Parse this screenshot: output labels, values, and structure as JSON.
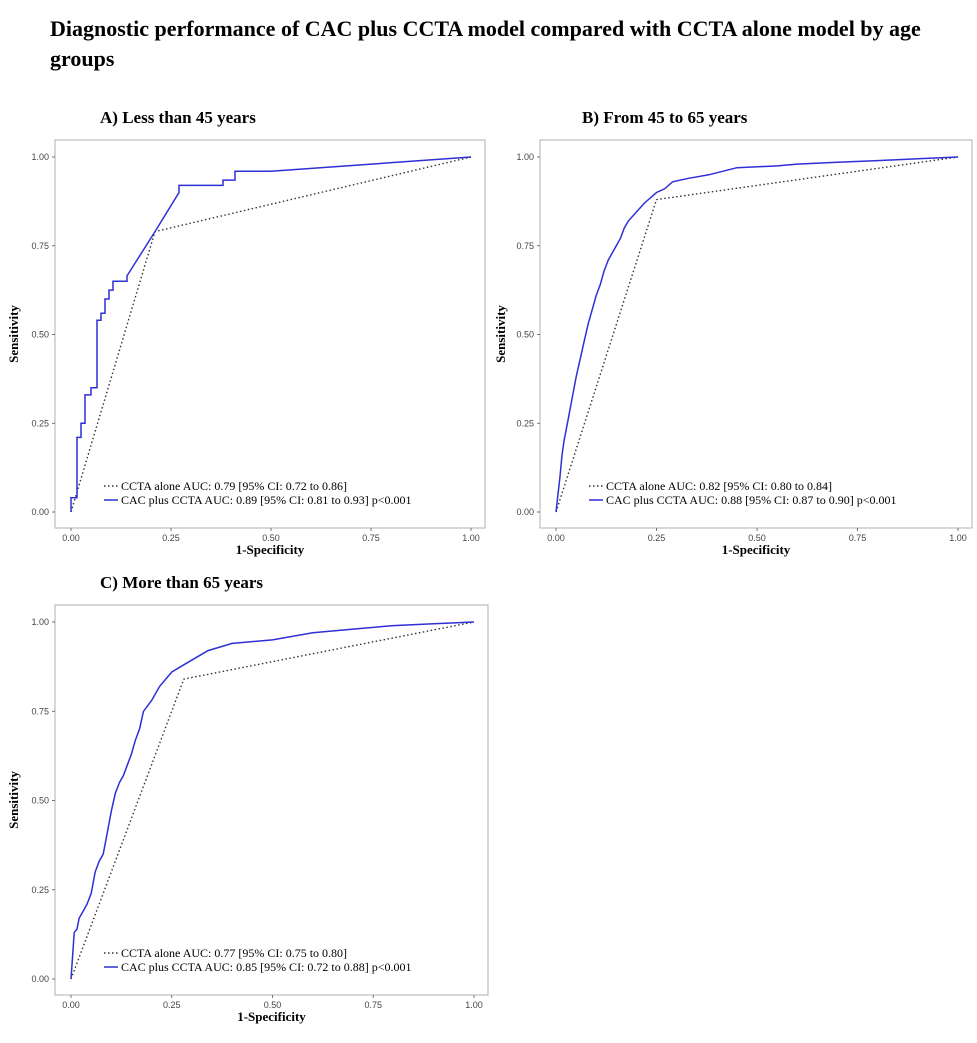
{
  "page": {
    "title": "Diagnostic performance of CAC plus CCTA model compared with CCTA alone model by age groups"
  },
  "colors": {
    "ccta_alone": "#333333",
    "cac_plus_ccta": "#2f2fd6",
    "panel_border": "#b0b0b0"
  },
  "chart_data": [
    {
      "type": "line",
      "title": "A)  Less than 45 years",
      "xlabel": "1-Specificity",
      "ylabel": "Sensitivity",
      "xlim": [
        0,
        1
      ],
      "ylim": [
        0,
        1
      ],
      "grid": false,
      "legend_position": "bottom-left",
      "x_ticks": [
        "0.00",
        "0.25",
        "0.50",
        "0.75",
        "1.00"
      ],
      "y_ticks": [
        "0.00",
        "0.25",
        "0.50",
        "0.75",
        "1.00"
      ],
      "series": [
        {
          "name": "CCTA alone AUC: 0.79 [95% CI: 0.72 to 0.86]",
          "style": "dotted",
          "color": "#333333",
          "points": [
            [
              0,
              0
            ],
            [
              0.21,
              0.79
            ],
            [
              1,
              1
            ]
          ]
        },
        {
          "name": "CAC plus CCTA  AUC: 0.89 [95% CI: 0.81 to 0.93] p<0.001",
          "style": "solid",
          "color": "#2f2fd6",
          "points": [
            [
              0,
              0
            ],
            [
              0,
              0.04
            ],
            [
              0.015,
              0.04
            ],
            [
              0.015,
              0.21
            ],
            [
              0.025,
              0.21
            ],
            [
              0.025,
              0.25
            ],
            [
              0.035,
              0.25
            ],
            [
              0.035,
              0.33
            ],
            [
              0.05,
              0.33
            ],
            [
              0.05,
              0.35
            ],
            [
              0.065,
              0.35
            ],
            [
              0.065,
              0.54
            ],
            [
              0.075,
              0.54
            ],
            [
              0.075,
              0.56
            ],
            [
              0.085,
              0.56
            ],
            [
              0.085,
              0.6
            ],
            [
              0.095,
              0.6
            ],
            [
              0.095,
              0.625
            ],
            [
              0.105,
              0.625
            ],
            [
              0.105,
              0.65
            ],
            [
              0.14,
              0.65
            ],
            [
              0.14,
              0.665
            ],
            [
              0.21,
              0.79
            ],
            [
              0.27,
              0.9
            ],
            [
              0.27,
              0.92
            ],
            [
              0.38,
              0.92
            ],
            [
              0.38,
              0.935
            ],
            [
              0.41,
              0.935
            ],
            [
              0.41,
              0.96
            ],
            [
              0.5,
              0.96
            ],
            [
              1,
              1
            ]
          ]
        }
      ]
    },
    {
      "type": "line",
      "title": "B) From 45 to 65 years",
      "xlabel": "1-Specificity",
      "ylabel": "Sensitivity",
      "xlim": [
        0,
        1
      ],
      "ylim": [
        0,
        1
      ],
      "grid": false,
      "legend_position": "bottom-left",
      "x_ticks": [
        "0.00",
        "0.25",
        "0.50",
        "0.75",
        "1.00"
      ],
      "y_ticks": [
        "0.00",
        "0.25",
        "0.50",
        "0.75",
        "1.00"
      ],
      "series": [
        {
          "name": "CCTA alone AUC: 0.82 [95% CI: 0.80 to 0.84]",
          "style": "dotted",
          "color": "#333333",
          "points": [
            [
              0,
              0
            ],
            [
              0.25,
              0.88
            ],
            [
              1,
              1
            ]
          ]
        },
        {
          "name": "CAC plus CCTA  AUC: 0.88 [95% CI: 0.87 to 0.90] p<0.001",
          "style": "solid",
          "color": "#2f2fd6",
          "points": [
            [
              0,
              0
            ],
            [
              0.005,
              0.05
            ],
            [
              0.01,
              0.1
            ],
            [
              0.015,
              0.16
            ],
            [
              0.02,
              0.2
            ],
            [
              0.03,
              0.26
            ],
            [
              0.04,
              0.32
            ],
            [
              0.05,
              0.38
            ],
            [
              0.06,
              0.43
            ],
            [
              0.07,
              0.48
            ],
            [
              0.08,
              0.53
            ],
            [
              0.09,
              0.57
            ],
            [
              0.1,
              0.61
            ],
            [
              0.11,
              0.64
            ],
            [
              0.12,
              0.68
            ],
            [
              0.13,
              0.71
            ],
            [
              0.14,
              0.73
            ],
            [
              0.15,
              0.75
            ],
            [
              0.16,
              0.77
            ],
            [
              0.17,
              0.8
            ],
            [
              0.18,
              0.82
            ],
            [
              0.2,
              0.845
            ],
            [
              0.22,
              0.87
            ],
            [
              0.25,
              0.9
            ],
            [
              0.27,
              0.91
            ],
            [
              0.29,
              0.93
            ],
            [
              0.33,
              0.94
            ],
            [
              0.38,
              0.95
            ],
            [
              0.45,
              0.97
            ],
            [
              0.55,
              0.975
            ],
            [
              0.6,
              0.98
            ],
            [
              0.7,
              0.985
            ],
            [
              0.8,
              0.99
            ],
            [
              0.9,
              0.995
            ],
            [
              1,
              1
            ]
          ]
        }
      ]
    },
    {
      "type": "line",
      "title": "C) More than 65 years",
      "xlabel": "1-Specificity",
      "ylabel": "Sensitivity",
      "xlim": [
        0,
        1
      ],
      "ylim": [
        0,
        1
      ],
      "grid": false,
      "legend_position": "bottom-left",
      "x_ticks": [
        "0.00",
        "0.25",
        "0.50",
        "0.75",
        "1.00"
      ],
      "y_ticks": [
        "0.00",
        "0.25",
        "0.50",
        "0.75",
        "1.00"
      ],
      "series": [
        {
          "name": "CCTA alone AUC: 0.77 [95% CI: 0.75 to 0.80]",
          "style": "dotted",
          "color": "#333333",
          "points": [
            [
              0,
              0
            ],
            [
              0.28,
              0.84
            ],
            [
              1,
              1
            ]
          ]
        },
        {
          "name": "CAC plus CCTA  AUC: 0.85 [95% CI: 0.72 to 0.88] p<0.001",
          "style": "solid",
          "color": "#2f2fd6",
          "points": [
            [
              0,
              0
            ],
            [
              0.005,
              0.08
            ],
            [
              0.008,
              0.13
            ],
            [
              0.015,
              0.14
            ],
            [
              0.02,
              0.17
            ],
            [
              0.03,
              0.19
            ],
            [
              0.04,
              0.21
            ],
            [
              0.05,
              0.24
            ],
            [
              0.06,
              0.3
            ],
            [
              0.07,
              0.33
            ],
            [
              0.08,
              0.35
            ],
            [
              0.09,
              0.41
            ],
            [
              0.1,
              0.47
            ],
            [
              0.11,
              0.52
            ],
            [
              0.12,
              0.55
            ],
            [
              0.13,
              0.57
            ],
            [
              0.14,
              0.6
            ],
            [
              0.15,
              0.63
            ],
            [
              0.16,
              0.67
            ],
            [
              0.17,
              0.7
            ],
            [
              0.18,
              0.75
            ],
            [
              0.2,
              0.78
            ],
            [
              0.22,
              0.82
            ],
            [
              0.25,
              0.86
            ],
            [
              0.28,
              0.88
            ],
            [
              0.31,
              0.9
            ],
            [
              0.34,
              0.92
            ],
            [
              0.4,
              0.94
            ],
            [
              0.5,
              0.95
            ],
            [
              0.6,
              0.97
            ],
            [
              0.7,
              0.98
            ],
            [
              0.8,
              0.99
            ],
            [
              0.9,
              0.995
            ],
            [
              1,
              1
            ]
          ]
        }
      ]
    }
  ]
}
